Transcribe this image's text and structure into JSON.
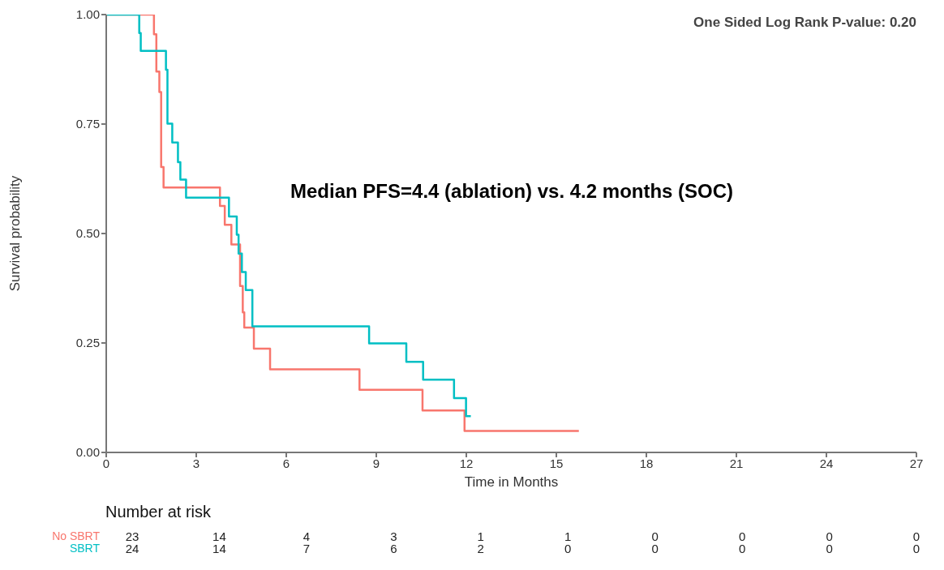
{
  "chart_data": {
    "type": "step",
    "xlabel": "Time in Months",
    "ylabel": "Survival probability",
    "xlim": [
      0,
      27
    ],
    "xticks": [
      0,
      3,
      6,
      9,
      12,
      15,
      18,
      21,
      24,
      27
    ],
    "ylim": [
      0,
      1
    ],
    "yticks": [
      {
        "value": 0,
        "label": "0.00"
      },
      {
        "value": 0.25,
        "label": "0.25"
      },
      {
        "value": 0.5,
        "label": "0.50"
      },
      {
        "value": 0.75,
        "label": "0.75"
      },
      {
        "value": 1,
        "label": "1.00"
      }
    ],
    "marker": "none",
    "line_style": "solid",
    "series": [
      {
        "name": "No SBRT",
        "color": "#f8766d",
        "x": [
          0,
          1.59,
          1.67,
          1.77,
          1.83,
          1.91,
          3.79,
          3.95,
          4.17,
          4.46,
          4.55,
          4.6,
          4.92,
          5.46,
          8.44,
          10.54,
          11.94,
          15.75
        ],
        "values": [
          1,
          0.955,
          0.87,
          0.823,
          0.652,
          0.605,
          0.563,
          0.52,
          0.475,
          0.38,
          0.32,
          0.285,
          0.237,
          0.19,
          0.143,
          0.096,
          0.049,
          0.049
        ]
      },
      {
        "name": "SBRT",
        "color": "#00bfc4",
        "x": [
          0,
          1.1,
          1.15,
          1.99,
          2.04,
          2.2,
          2.39,
          2.47,
          2.66,
          4.09,
          4.35,
          4.41,
          4.52,
          4.65,
          4.87,
          8.76,
          10.0,
          10.56,
          11.59,
          11.99,
          12.15
        ],
        "values": [
          1,
          0.958,
          0.917,
          0.874,
          0.751,
          0.708,
          0.663,
          0.623,
          0.582,
          0.539,
          0.497,
          0.454,
          0.412,
          0.371,
          0.288,
          0.249,
          0.207,
          0.166,
          0.124,
          0.083,
          0.083
        ]
      }
    ],
    "annotations": [
      "One Sided Log Rank P-value: 0.20",
      "Median PFS=4.4 (ablation) vs. 4.2 months (SOC)",
      "Number at risk",
      "23 14 4 3 1 1 0 0 0 0",
      "24 14 7 6 2 0 0 0 0 0"
    ]
  }
}
